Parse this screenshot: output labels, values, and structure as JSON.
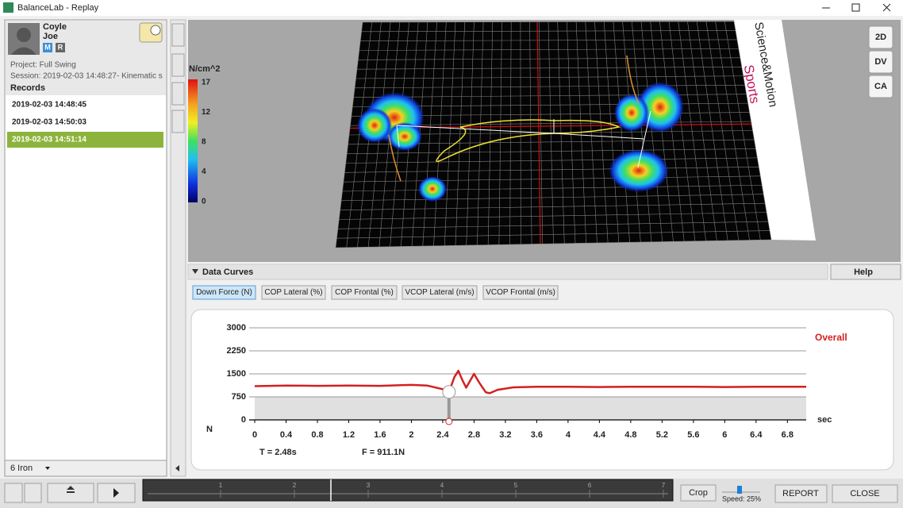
{
  "window": {
    "title": "BalanceLab - Replay"
  },
  "subject": {
    "last_name": "Coyle",
    "first_name": "Joe",
    "badges": [
      "M",
      "R"
    ],
    "project": "Project: Full Swing",
    "session": "Session: 2019-02-03 14:48:27- Kinematic s",
    "records_header": "Records",
    "records": [
      "2019-02-03 14:48:45",
      "2019-02-03 14:50:03",
      "2019-02-03 14:51:14"
    ],
    "selected_record": 2,
    "club": "6 Iron"
  },
  "view3d": {
    "unit": "N/cm^2",
    "scale_labels": [
      "17",
      "12",
      "8",
      "4",
      "0"
    ],
    "buttons": [
      "2D",
      "DV",
      "CA"
    ],
    "logo": [
      "Science&Motion",
      "Sports"
    ]
  },
  "data_curves": {
    "header": "Data Curves",
    "help": "Help",
    "tabs": [
      "Down Force (N)",
      "COP Lateral (%)",
      "COP Frontal (%)",
      "VCOP Lateral (m/s)",
      "VCOP Frontal (m/s)"
    ],
    "selected_tab": 0
  },
  "chart_data": {
    "type": "line",
    "x_label": "sec",
    "y_label": "N",
    "x": [
      0,
      0.4,
      0.8,
      1.2,
      1.6,
      2.0,
      2.2,
      2.4,
      2.48,
      2.55,
      2.6,
      2.65,
      2.7,
      2.8,
      2.87,
      2.95,
      3.0,
      3.1,
      3.3,
      3.6,
      4.0,
      4.4,
      4.8,
      5.2,
      5.6,
      6.0,
      6.4,
      6.8,
      7.04
    ],
    "series": [
      {
        "name": "Overall",
        "color": "#d42020",
        "values": [
          1100,
          1120,
          1110,
          1120,
          1110,
          1140,
          1120,
          1000,
          911,
          1400,
          1600,
          1300,
          1050,
          1500,
          1200,
          900,
          870,
          980,
          1060,
          1080,
          1080,
          1070,
          1080,
          1080,
          1080,
          1070,
          1080,
          1080,
          1080
        ]
      }
    ],
    "xlim": [
      0,
      7.04
    ],
    "ylim": [
      0,
      3000
    ],
    "xticks": [
      0,
      0.4,
      0.8,
      1.2,
      1.6,
      2,
      2.4,
      2.8,
      3.2,
      3.6,
      4,
      4.4,
      4.8,
      5.2,
      5.6,
      6,
      6.4,
      6.8
    ],
    "yticks": [
      0,
      750,
      1500,
      2250,
      3000
    ],
    "cursor": {
      "x": 2.48,
      "y": 911.1
    },
    "readout": [
      "T = 2.48s",
      "F = 911.1N"
    ]
  },
  "playback": {
    "timeline_ticks": [
      "1",
      "2",
      "3",
      "4",
      "5",
      "6",
      "7"
    ],
    "crop": "Crop",
    "speed": "Speed: 25%",
    "report": "REPORT",
    "close": "CLOSE"
  }
}
